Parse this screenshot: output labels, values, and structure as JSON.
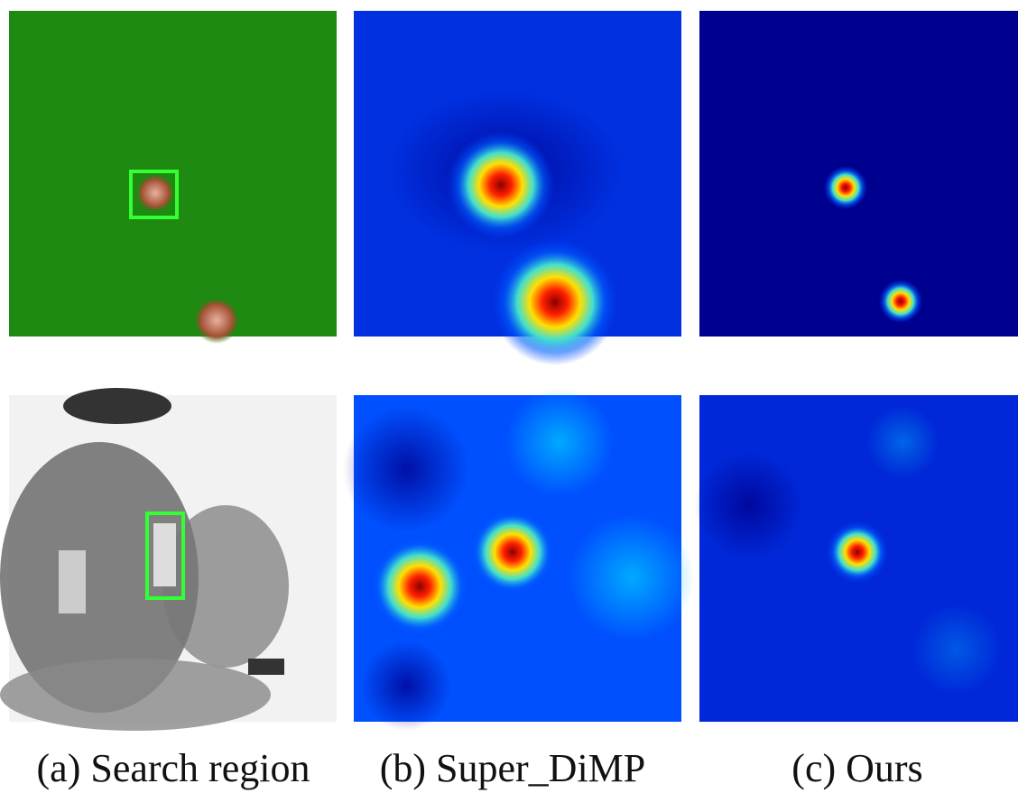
{
  "captions": [
    "(a) Search region",
    "(b) Super_DiMP",
    "(c) Ours"
  ]
}
